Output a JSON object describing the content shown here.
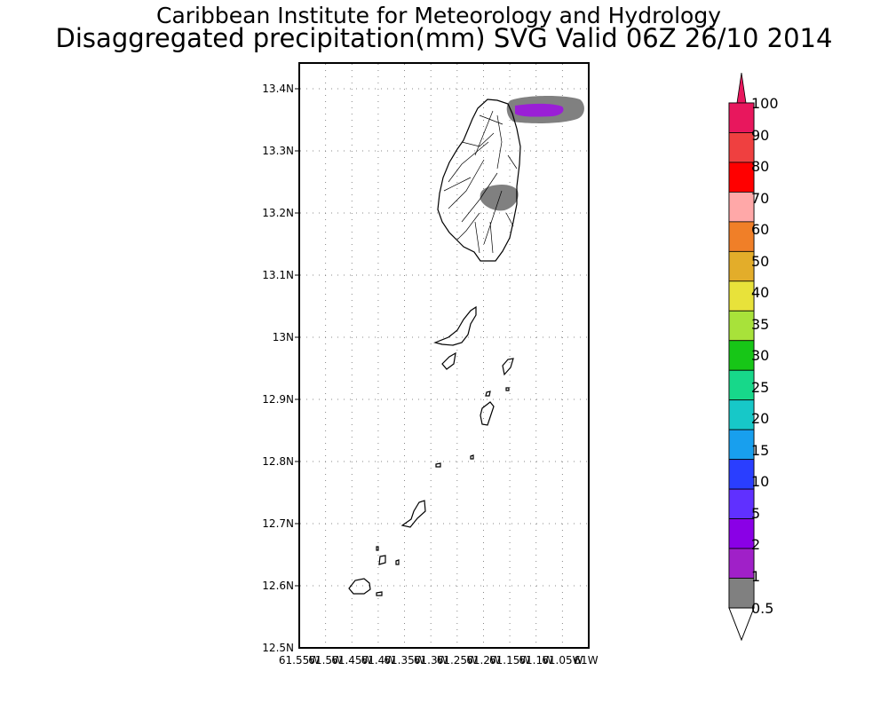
{
  "header": {
    "title_line1": "Caribbean Institute for Meteorology and Hydrology",
    "title_line2": "Disaggregated precipitation(mm) SVG Valid 06Z 26/10 2014"
  },
  "map": {
    "lat_range": [
      12.5,
      13.45
    ],
    "lon_range": [
      -61.55,
      -61.0
    ],
    "lat_ticks": [
      "13.4N",
      "13.3N",
      "13.2N",
      "13.1N",
      "13N",
      "12.9N",
      "12.8N",
      "12.7N",
      "12.6N",
      "12.5N"
    ],
    "lon_ticks": [
      "61.55W",
      "61.5W",
      "61.45W",
      "61.4W",
      "61.35W",
      "61.3W",
      "61.25W",
      "61.2W",
      "61.15W",
      "61.1W",
      "61.05W",
      "61W"
    ],
    "grid": "dotted",
    "precipitation_areas": [
      {
        "label": "north-east offshore",
        "levels": [
          "0.5-1",
          "2-5"
        ]
      },
      {
        "label": "central St. Vincent",
        "levels": [
          "0.5-1"
        ]
      }
    ]
  },
  "colorbar": {
    "labels": [
      "100",
      "90",
      "80",
      "70",
      "60",
      "50",
      "40",
      "35",
      "30",
      "25",
      "20",
      "15",
      "10",
      "5",
      "2",
      "1",
      "0.5"
    ],
    "colors": [
      "#e8175d",
      "#ef4040",
      "#ff0000",
      "#ffa8a8",
      "#f07f28",
      "#e3ad2a",
      "#e8e23a",
      "#a8e23a",
      "#17c617",
      "#17d88a",
      "#17c8c8",
      "#189fee",
      "#2a3eff",
      "#6030ff",
      "#8a00e6",
      "#a020c8",
      "#808080"
    ],
    "top_arrow_color": "#e8175d",
    "bottom_arrow_color": "#ffffff"
  }
}
